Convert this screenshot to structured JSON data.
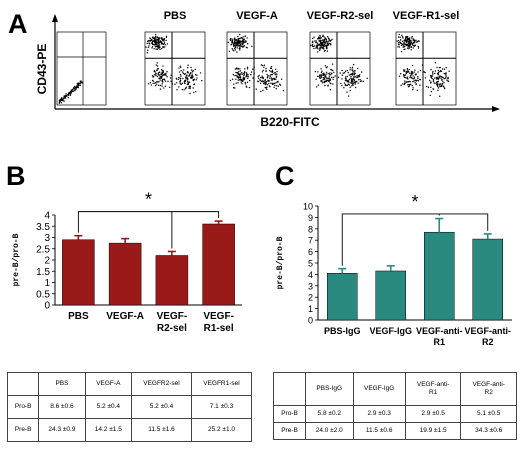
{
  "panel_a": {
    "letter": "A",
    "samples": [
      "PBS",
      "VEGF-A",
      "VEGF-R2-sel",
      "VEGF-R1-sel"
    ],
    "y_label": "CD43-PE",
    "x_label": "B220-FITC"
  },
  "chart_data": [
    {
      "type": "bar",
      "panel": "B",
      "categories": [
        "PBS",
        "VEGF-A",
        "VEGF-R2-sel",
        "VEGFR1-sel"
      ],
      "category_lines": [
        [
          "PBS"
        ],
        [
          "VEGF-A"
        ],
        [
          "VEGF-",
          "R2-sel"
        ],
        [
          "VEGF-",
          "R1-sel"
        ]
      ],
      "values": [
        2.9,
        2.75,
        2.2,
        3.6
      ],
      "errors": [
        0.18,
        0.2,
        0.18,
        0.13
      ],
      "ylabel": "pre-B/pro-B",
      "ylim": [
        0,
        4
      ],
      "ticks": [
        "0",
        "0.5",
        "1",
        "1.5",
        "2",
        "2.5",
        "3",
        "3.5",
        "4"
      ],
      "significance": {
        "between": [
          0,
          3
        ],
        "label": "*",
        "bar_value": 4.15
      },
      "color": "#9a1a1a",
      "grid": false
    },
    {
      "type": "bar",
      "panel": "C",
      "categories": [
        "PBS-IgG",
        "VEGF-IgG",
        "VEGF-anti-R1",
        "VEGF-anti-R2"
      ],
      "category_lines": [
        [
          "PBS-IgG"
        ],
        [
          "VEGF-IgG"
        ],
        [
          "VEGF-anti-",
          "R1"
        ],
        [
          "VEGF-anti-",
          "R2"
        ]
      ],
      "values": [
        4.1,
        4.3,
        7.7,
        7.1
      ],
      "errors": [
        0.4,
        0.45,
        1.2,
        0.45
      ],
      "ylabel": "pre-B/pro-B",
      "ylim": [
        0,
        10
      ],
      "ticks": [
        "0",
        "1",
        "2",
        "3",
        "4",
        "5",
        "6",
        "7",
        "8",
        "9",
        "10"
      ],
      "significance": {
        "between": [
          0,
          3
        ],
        "label": "*",
        "bar_value": 9.3
      },
      "color": "#2a8a80",
      "grid": false
    }
  ],
  "table_b": {
    "headers": [
      "",
      "PBS",
      "VEGF-A",
      "VEGFR2-sel",
      "VEGFR1-sel"
    ],
    "rows": [
      [
        "Pro-B",
        "8.6 ±0.6",
        "5.2 ±0.4",
        "5.2 ±0.4",
        "7.1 ±0.3"
      ],
      [
        "Pre-B",
        "24.3 ±0.9",
        "14.2 ±1.5",
        "11.5 ±1.6",
        "25.2 ±1.0"
      ]
    ]
  },
  "table_c": {
    "headers": [
      "",
      "PBS-IgG",
      "VEGF-IgG",
      "VEGF-anti-R1",
      "VEGF-anti-R2"
    ],
    "header_lines": [
      [
        ""
      ],
      [
        "PBS-IgG"
      ],
      [
        "VEGF-IgG"
      ],
      [
        "VEGF-anti-",
        "R1"
      ],
      [
        "VEGF-anti-",
        "R2"
      ]
    ],
    "rows": [
      [
        "Pro-B",
        "5.8 ±0.2",
        "2.9 ±0.3",
        "2.9 ±0.5",
        "5.1 ±0.5"
      ],
      [
        "Pre-B",
        "24.0 ±2.0",
        "11.5 ±0.6",
        "19.9 ±1.5",
        "34.3 ±0.6"
      ]
    ]
  }
}
